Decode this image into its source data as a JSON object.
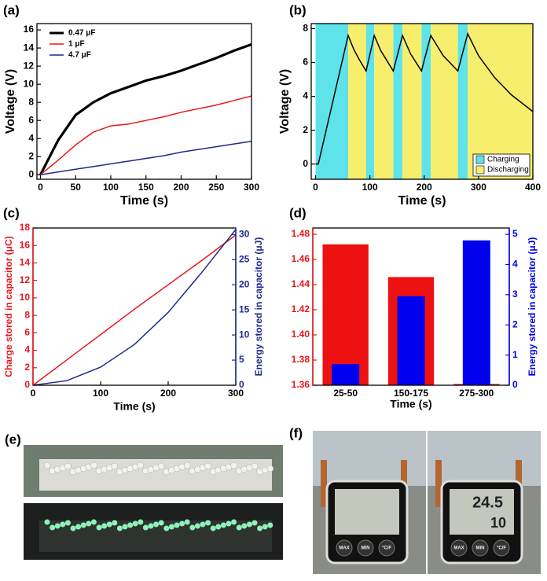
{
  "chart_data": [
    {
      "type": "line",
      "panel_label": "(a)",
      "xlabel": "Time (s)",
      "ylabel": "Voltage (V)",
      "x": [
        0,
        25,
        50,
        75,
        100,
        125,
        150,
        175,
        200,
        225,
        250,
        275,
        300
      ],
      "series": [
        {
          "name": "0.47 μF",
          "color": "#000000",
          "values": [
            0,
            3.8,
            6.6,
            8.0,
            9.0,
            9.7,
            10.4,
            10.9,
            11.5,
            12.2,
            12.9,
            13.7,
            14.4
          ]
        },
        {
          "name": "1 μF",
          "color": "#e8161b",
          "values": [
            0,
            1.6,
            3.3,
            4.7,
            5.4,
            5.6,
            6.0,
            6.4,
            6.9,
            7.3,
            7.7,
            8.2,
            8.7
          ]
        },
        {
          "name": "4.7 μF",
          "color": "#1f2a8c",
          "values": [
            0,
            0.3,
            0.6,
            0.9,
            1.2,
            1.5,
            1.8,
            2.1,
            2.5,
            2.8,
            3.1,
            3.4,
            3.7
          ]
        }
      ],
      "xlim": [
        -5,
        300
      ],
      "xticks": [
        0,
        50,
        100,
        150,
        200,
        250,
        300
      ],
      "ylim": [
        -0.5,
        16.7
      ],
      "yticks": [
        0,
        2,
        4,
        6,
        8,
        10,
        12,
        14,
        16
      ],
      "legend": "upper left"
    },
    {
      "type": "line",
      "panel_label": "(b)",
      "xlabel": "Time (s)",
      "ylabel": "Voltage (V)",
      "x": [
        0,
        5,
        60,
        70,
        80,
        93,
        108,
        120,
        143,
        160,
        175,
        195,
        212,
        235,
        262,
        280,
        300,
        330,
        360,
        400
      ],
      "values": [
        0,
        0,
        7.6,
        6.8,
        6.2,
        5.5,
        7.6,
        6.7,
        5.5,
        7.6,
        6.5,
        5.5,
        7.6,
        6.4,
        5.5,
        7.7,
        6.4,
        5.1,
        4.1,
        3.1
      ],
      "color": "#000000",
      "bands": [
        {
          "name": "Charging",
          "color": "#5fe3ea",
          "intervals": [
            [
              0,
              60
            ],
            [
              93,
              108
            ],
            [
              143,
              160
            ],
            [
              195,
              212
            ],
            [
              262,
              280
            ]
          ]
        },
        {
          "name": "Discharging",
          "color": "#f7ee6e",
          "intervals": [
            [
              60,
              93
            ],
            [
              108,
              143
            ],
            [
              160,
              195
            ],
            [
              212,
              262
            ],
            [
              280,
              400
            ]
          ]
        }
      ],
      "xlim": [
        -8,
        400
      ],
      "xticks": [
        0,
        100,
        200,
        300,
        400
      ],
      "ylim": [
        -0.9,
        8.3
      ],
      "yticks": [
        0,
        2,
        4,
        6,
        8
      ],
      "legend": "lower right"
    },
    {
      "type": "line",
      "panel_label": "(c)",
      "xlabel": "Time (s)",
      "ylabel": "Charge stored in capacitor (μC)",
      "y2label": "Energy stored in capacitor (μJ)",
      "y_axis_color": "#e8161b",
      "y2_axis_color": "#1f2a8c",
      "x": [
        0,
        50,
        100,
        150,
        200,
        250,
        300
      ],
      "series": [
        {
          "color": "#e8161b",
          "values": [
            0,
            2.9,
            5.8,
            8.7,
            11.5,
            14.3,
            17.2
          ]
        },
        {
          "color": "#1f2a8c",
          "axis": "y2",
          "values": [
            0,
            0.9,
            3.6,
            8.1,
            14.5,
            22.5,
            31
          ]
        }
      ],
      "xlim": [
        0,
        300
      ],
      "xticks": [
        0,
        100,
        200,
        300
      ],
      "ylim": [
        0,
        18
      ],
      "yticks": [
        0,
        2,
        4,
        6,
        8,
        10,
        12,
        14,
        16,
        18
      ],
      "y2lim": [
        0,
        31.3
      ],
      "y2ticks": [
        0,
        5,
        10,
        15,
        20,
        25,
        30
      ]
    },
    {
      "type": "bar",
      "panel_label": "(d)",
      "xlabel": "Time (s)",
      "y2label": "Energy stored in capacitor (μJ)",
      "y_axis_color": "#e8161b",
      "y2_axis_color": "#0000ee",
      "categories": [
        "25-50",
        "150-175",
        "275-300"
      ],
      "series": [
        {
          "color": "#ee1111",
          "values": [
            1.472,
            1.446,
            1.361
          ]
        },
        {
          "color": "#0000ee",
          "axis": "y2",
          "values": [
            0.7,
            2.95,
            4.8
          ]
        }
      ],
      "ylim": [
        1.36,
        1.485
      ],
      "yticks": [
        1.36,
        1.38,
        {
          "value": 1.4,
          "label": "1.40"
        },
        1.42,
        1.44,
        1.46,
        1.48
      ],
      "y2lim": [
        0,
        5.21
      ],
      "y2ticks": [
        0,
        1,
        2,
        3,
        4,
        5
      ]
    }
  ],
  "photos": {
    "panel_e": "(e)",
    "panel_f": "(f)",
    "display_temperature": "24.5",
    "display_humidity": "10",
    "buttons": [
      "MAX",
      "MIN",
      "°C/F"
    ]
  }
}
